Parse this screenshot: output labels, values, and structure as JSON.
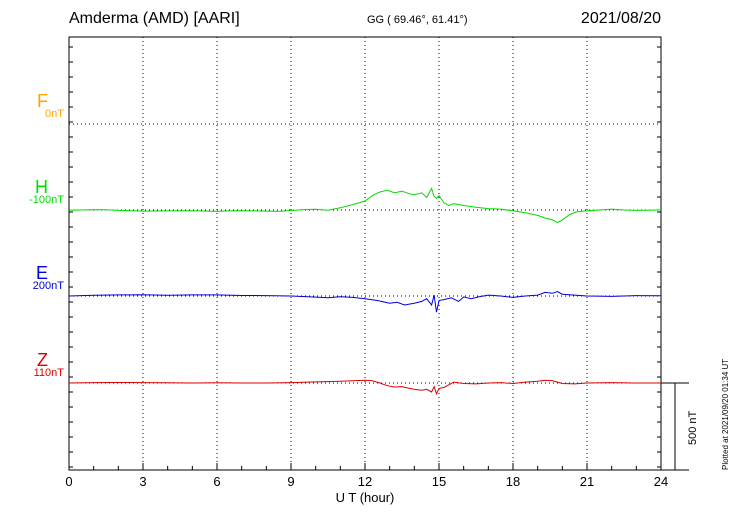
{
  "header": {
    "station": "Amderma (AMD)  [AARI]",
    "coords": "GG ( 69.46°,  61.41°)",
    "date": "2021/08/20"
  },
  "scale_label": "500 nT",
  "plotted_label": "Plotted at 2021/09/20 01:34 UT",
  "chart_data": {
    "type": "line",
    "xlabel": "U T (hour)",
    "xlim": [
      0,
      24
    ],
    "x_ticks": [
      "0",
      "3",
      "6",
      "9",
      "12",
      "15",
      "18",
      "21",
      "24"
    ],
    "colors": {
      "F": "#ffa500",
      "H": "#00dd00",
      "E": "#0000dd",
      "Z": "#dd0000"
    },
    "components": [
      {
        "name": "F",
        "offset_label": "0nT"
      },
      {
        "name": "H",
        "offset_label": "-100nT"
      },
      {
        "name": "E",
        "offset_label": "200nT"
      },
      {
        "name": "Z",
        "offset_label": "110nT"
      }
    ],
    "series": [
      {
        "name": "H",
        "x": [
          0,
          0.5,
          1,
          1.5,
          2,
          2.5,
          3,
          4,
          5,
          6,
          6.5,
          7,
          8,
          8.5,
          9,
          9.5,
          10,
          10.5,
          11,
          11.5,
          12,
          12.3,
          12.6,
          12.9,
          13.2,
          13.5,
          13.8,
          14,
          14.3,
          14.5,
          14.7,
          14.8,
          14.9,
          15,
          15.2,
          15.4,
          15.6,
          15.8,
          16,
          16.5,
          17,
          17.5,
          18,
          18.5,
          19,
          19.3,
          19.6,
          19.8,
          20,
          20.3,
          20.6,
          21,
          21.5,
          22,
          22.5,
          23,
          23.5,
          24
        ],
        "values": [
          -1,
          0,
          2,
          1,
          -2,
          -4,
          -6,
          -5,
          -4,
          -8,
          -5,
          -4,
          -6,
          -8,
          -3,
          2,
          4,
          -1,
          12,
          30,
          50,
          80,
          100,
          110,
          95,
          105,
          90,
          85,
          95,
          70,
          120,
          75,
          65,
          80,
          40,
          25,
          35,
          30,
          25,
          15,
          8,
          5,
          -5,
          -15,
          -30,
          -45,
          -55,
          -70,
          -55,
          -25,
          -10,
          -5,
          0,
          5,
          0,
          -2,
          -1,
          0
        ]
      },
      {
        "name": "E",
        "x": [
          0,
          1,
          2,
          3,
          4,
          5,
          6,
          7,
          8,
          9,
          10,
          10.5,
          11,
          11.5,
          12,
          12.5,
          13,
          13.3,
          13.6,
          14,
          14.3,
          14.5,
          14.7,
          14.8,
          14.9,
          15,
          15.2,
          15.5,
          15.8,
          16,
          16.3,
          16.6,
          17,
          17.5,
          18,
          18.5,
          19,
          19.3,
          19.6,
          19.8,
          20,
          20.5,
          21,
          22,
          23,
          24
        ],
        "values": [
          0,
          4,
          6,
          7,
          4,
          6,
          6,
          3,
          2,
          0,
          -6,
          -10,
          -4,
          -8,
          -15,
          -25,
          -40,
          -35,
          -50,
          -40,
          -30,
          -15,
          -50,
          5,
          -90,
          -25,
          -20,
          -10,
          -30,
          -5,
          -15,
          -5,
          5,
          0,
          -8,
          0,
          5,
          20,
          15,
          25,
          10,
          5,
          0,
          -2,
          2,
          1
        ]
      },
      {
        "name": "Z",
        "x": [
          0,
          1,
          2,
          3,
          4,
          5,
          6,
          7,
          8,
          9,
          10,
          11,
          11.5,
          12,
          12.3,
          12.6,
          12.9,
          13.2,
          13.5,
          13.8,
          14,
          14.3,
          14.5,
          14.7,
          14.8,
          14.9,
          15,
          15.2,
          15.4,
          15.6,
          16,
          16.5,
          17,
          17.5,
          18,
          18.5,
          19,
          19.3,
          19.6,
          19.8,
          20,
          20.5,
          21,
          22,
          23,
          24
        ],
        "values": [
          0,
          2,
          3,
          2,
          1,
          0,
          1,
          0,
          0,
          2,
          6,
          10,
          12,
          15,
          12,
          0,
          -15,
          -22,
          -20,
          -30,
          -35,
          -40,
          -35,
          -50,
          -20,
          -60,
          -30,
          -25,
          -10,
          5,
          -3,
          -5,
          0,
          2,
          -3,
          5,
          10,
          15,
          12,
          5,
          -3,
          -5,
          0,
          2,
          0,
          0
        ]
      }
    ]
  }
}
